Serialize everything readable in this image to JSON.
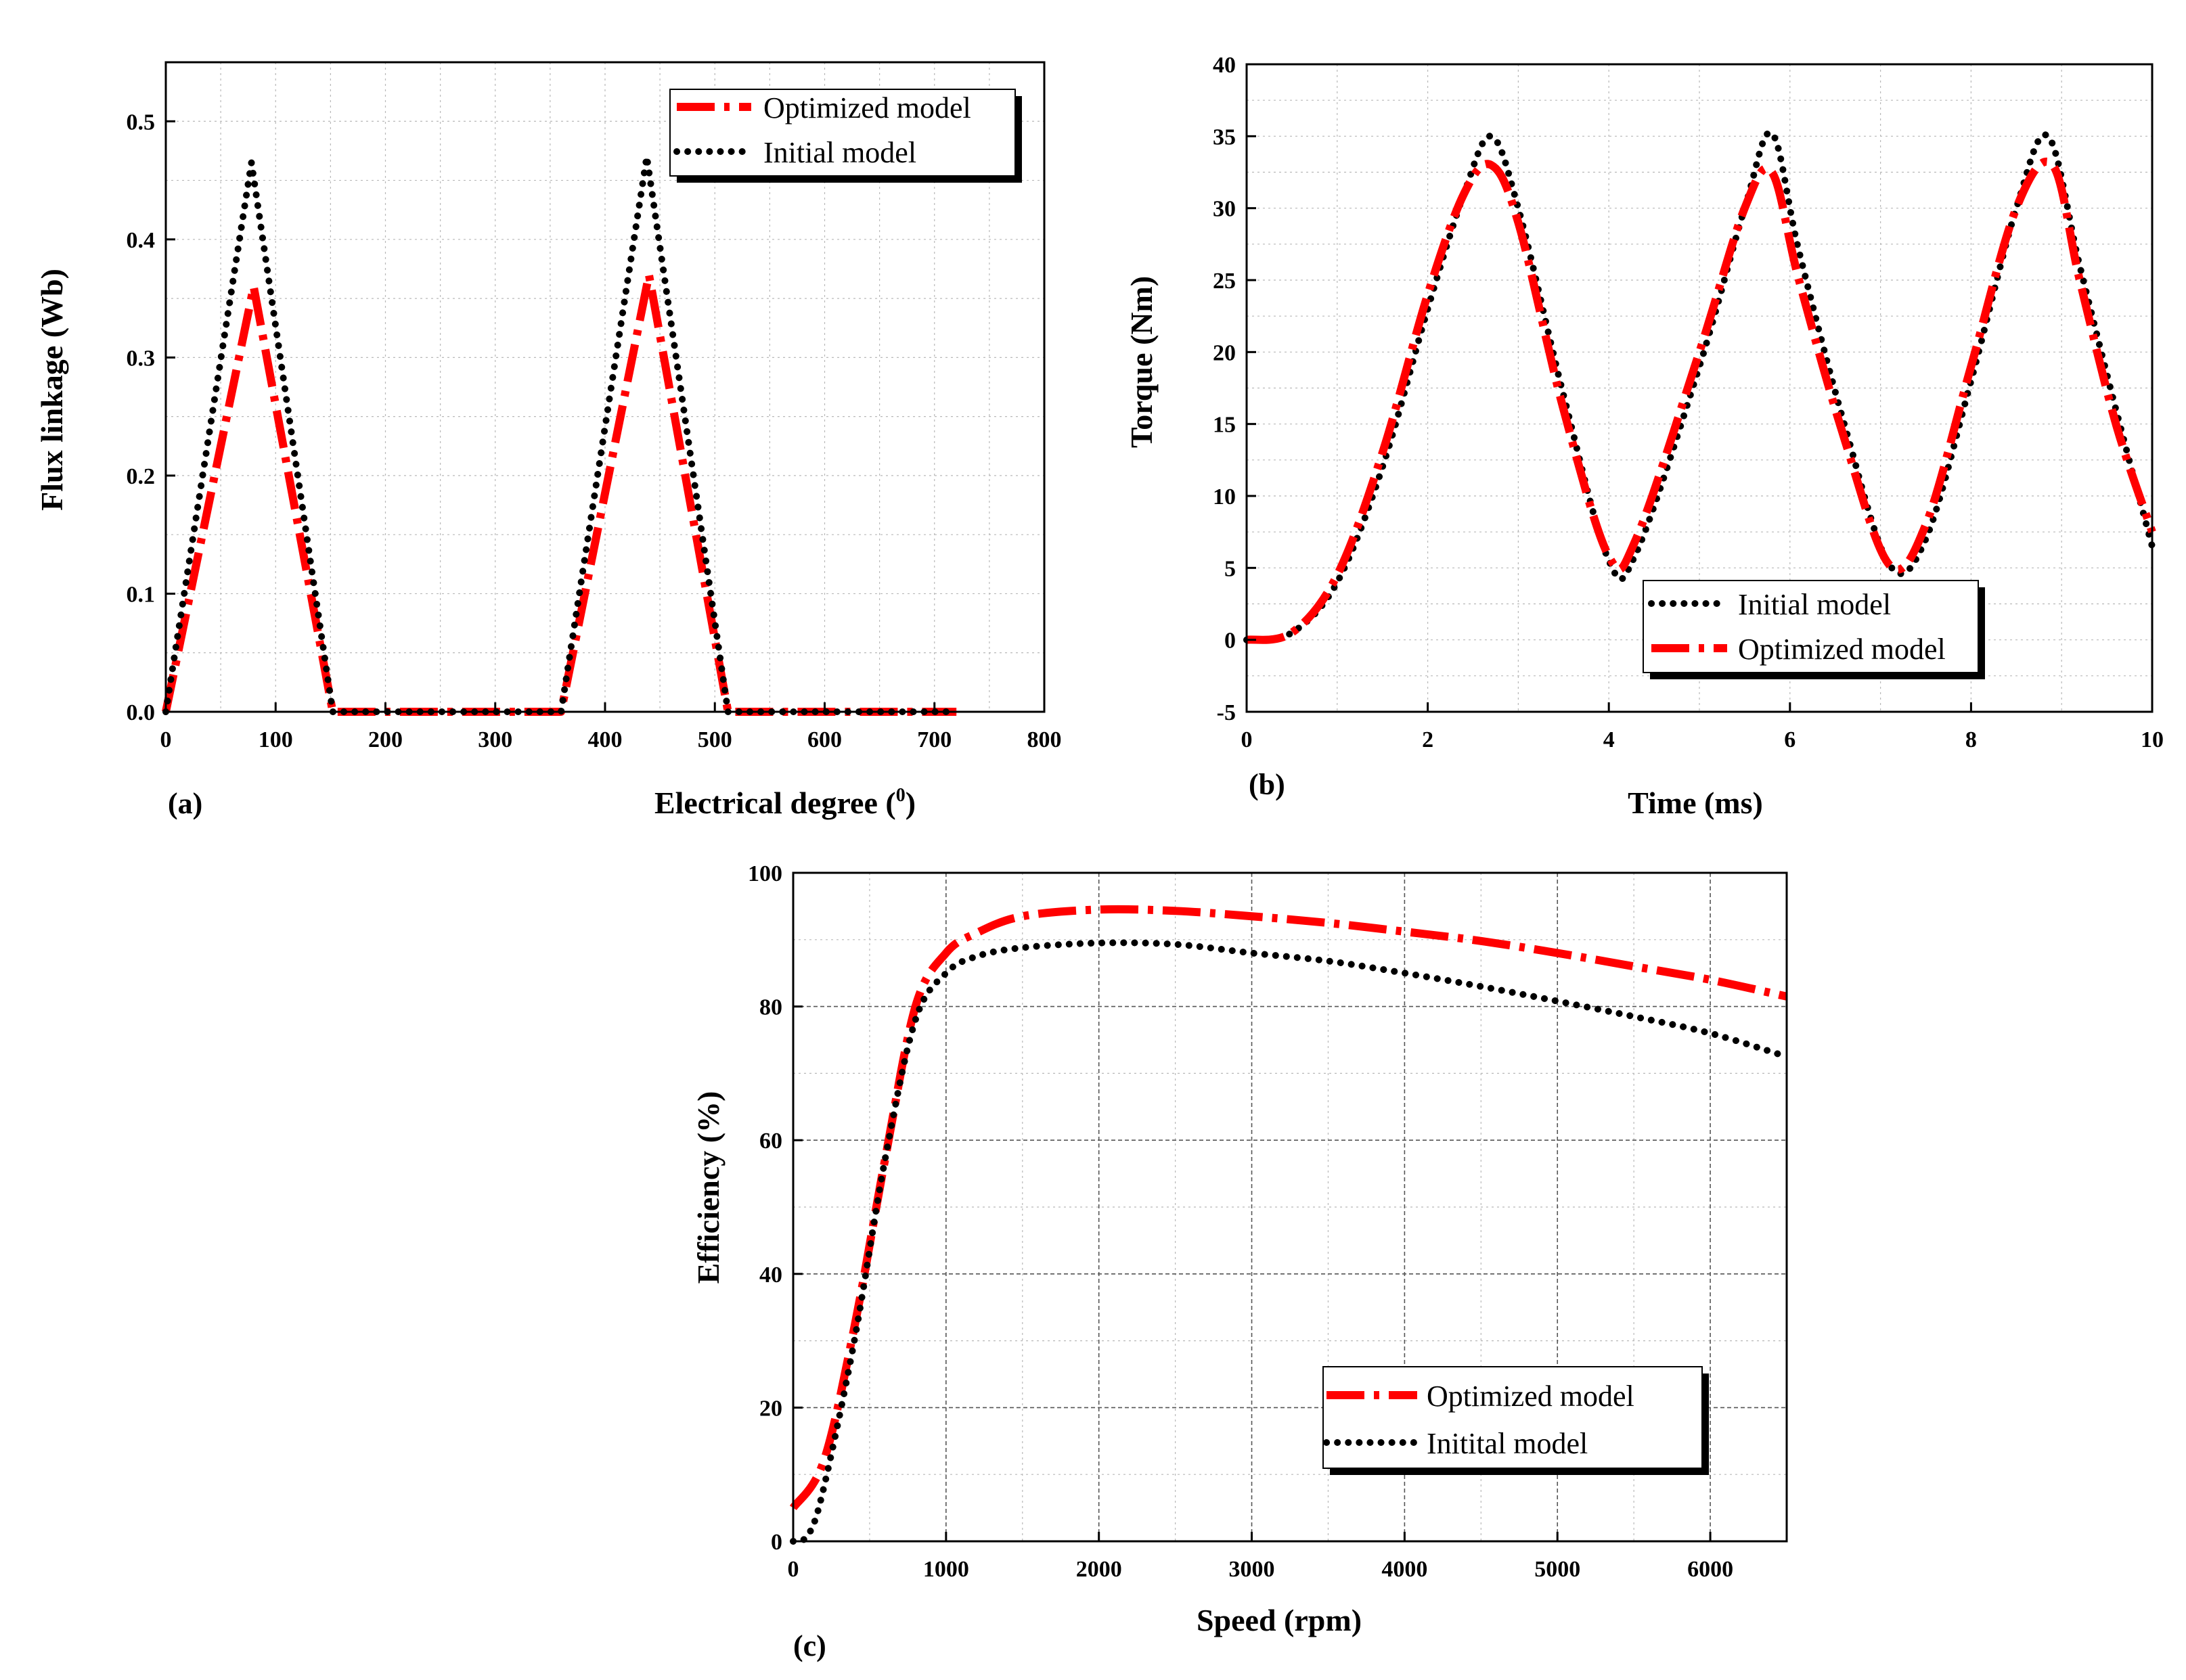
{
  "colors": {
    "optimized": "#ff0000",
    "initial": "#000000",
    "grid": "#b8b8b8",
    "axis": "#000000"
  },
  "chart_data": [
    {
      "id": "a",
      "type": "line",
      "panel_label": "(a)",
      "xlabel": "Electrical degree (",
      "xlabel_sup": "0",
      "xlabel_end": ")",
      "ylabel": "Flux linkage (Wb)",
      "xlim": [
        0,
        800
      ],
      "ylim": [
        0,
        0.55
      ],
      "xticks": [
        "0",
        "100",
        "200",
        "300",
        "400",
        "500",
        "600",
        "700",
        "800"
      ],
      "xtick_values": [
        0,
        100,
        200,
        300,
        400,
        500,
        600,
        700,
        800
      ],
      "yticks": [
        "0.0",
        "0.1",
        "0.2",
        "0.3",
        "0.4",
        "0.5"
      ],
      "ytick_values": [
        0,
        0.1,
        0.2,
        0.3,
        0.4,
        0.5
      ],
      "legend_position": "top-right",
      "legend": [
        {
          "name": "Optimized model",
          "style": "optimized"
        },
        {
          "name": "Initial model",
          "style": "initial"
        }
      ],
      "series": [
        {
          "name": "Optimized model",
          "style": "optimized",
          "x": [
            0,
            80,
            152,
            160,
            360,
            440,
            512,
            520,
            720
          ],
          "y": [
            0,
            0.36,
            0,
            0,
            0,
            0.37,
            0,
            0,
            0
          ]
        },
        {
          "name": "Initial model",
          "style": "initial",
          "x": [
            0,
            78,
            152,
            160,
            360,
            438,
            512,
            520,
            720
          ],
          "y": [
            0,
            0.465,
            0,
            0,
            0,
            0.47,
            0,
            0,
            0
          ]
        }
      ]
    },
    {
      "id": "b",
      "type": "line",
      "panel_label": "(b)",
      "xlabel": "Time (ms)",
      "ylabel": "Torque (Nm)",
      "xlim": [
        0,
        10
      ],
      "ylim": [
        -5,
        40
      ],
      "xticks": [
        "0",
        "2",
        "4",
        "6",
        "8",
        "10"
      ],
      "xtick_values": [
        0,
        2,
        4,
        6,
        8,
        10
      ],
      "yticks": [
        "-5",
        "0",
        "5",
        "10",
        "15",
        "20",
        "25",
        "30",
        "35",
        "40"
      ],
      "ytick_values": [
        -5,
        0,
        5,
        10,
        15,
        20,
        25,
        30,
        35,
        40
      ],
      "legend_position": "bottom-right",
      "legend": [
        {
          "name": "Initial model",
          "style": "initial"
        },
        {
          "name": "Optimized model",
          "style": "optimized"
        }
      ],
      "series": [
        {
          "name": "Initial model",
          "style": "initial",
          "x": [
            0,
            0.5,
            1.0,
            1.5,
            2.0,
            2.4,
            2.7,
            3.0,
            3.5,
            4.0,
            4.3,
            5.0,
            5.5,
            5.8,
            6.1,
            6.6,
            7.1,
            7.5,
            8.0,
            8.5,
            8.85,
            9.2,
            9.6,
            10.0
          ],
          "y": [
            0,
            0.5,
            4,
            12,
            23,
            31,
            35,
            30,
            17,
            5.5,
            6,
            19,
            30,
            35.2,
            27,
            15,
            5.2,
            7,
            18,
            30,
            35,
            26,
            16,
            6.5
          ]
        },
        {
          "name": "Optimized model",
          "style": "optimized",
          "x": [
            0,
            0.5,
            1.0,
            1.5,
            2.0,
            2.4,
            2.7,
            3.0,
            3.5,
            4.0,
            4.3,
            5.0,
            5.5,
            5.8,
            6.1,
            6.6,
            7.1,
            7.5,
            8.0,
            8.5,
            8.9,
            9.2,
            9.6,
            10.0
          ],
          "y": [
            0,
            0.5,
            4.5,
            13,
            24,
            31,
            33,
            29,
            16,
            5.8,
            7,
            20,
            30,
            32.5,
            25,
            14,
            5.2,
            8,
            19,
            30,
            33,
            25,
            15,
            7.5
          ]
        }
      ]
    },
    {
      "id": "c",
      "type": "line",
      "panel_label": "(c)",
      "xlabel": "Speed (rpm)",
      "ylabel": "Efficiency (%)",
      "xlim": [
        0,
        6500
      ],
      "ylim": [
        0,
        100
      ],
      "xticks": [
        "0",
        "1000",
        "2000",
        "3000",
        "4000",
        "5000",
        "6000"
      ],
      "xtick_values": [
        0,
        1000,
        2000,
        3000,
        4000,
        5000,
        6000
      ],
      "yticks": [
        "0",
        "20",
        "40",
        "60",
        "80",
        "100"
      ],
      "ytick_values": [
        0,
        20,
        40,
        60,
        80,
        100
      ],
      "legend_position": "bottom-right",
      "legend": [
        {
          "name": "Optimized model",
          "style": "optimized"
        },
        {
          "name": "Initital model",
          "style": "initial"
        }
      ],
      "series": [
        {
          "name": "Optimized model",
          "style": "optimized",
          "x": [
            0,
            200,
            400,
            600,
            800,
            1000,
            1200,
            1500,
            2000,
            2500,
            3000,
            3500,
            4000,
            4500,
            5000,
            5500,
            6000,
            6500
          ],
          "y": [
            5,
            12,
            32,
            57,
            80,
            88,
            91,
            93.5,
            94.5,
            94.3,
            93.5,
            92.5,
            91.2,
            89.8,
            88,
            86,
            84,
            81.5
          ]
        },
        {
          "name": "Initital model",
          "style": "initial",
          "x": [
            0,
            100,
            200,
            400,
            600,
            800,
            1000,
            1200,
            1500,
            2000,
            2500,
            3000,
            3500,
            4000,
            4500,
            5000,
            5500,
            6000,
            6500
          ],
          "y": [
            0,
            1,
            8,
            30,
            57,
            78,
            85,
            87.5,
            88.8,
            89.5,
            89.3,
            88,
            86.8,
            85,
            83,
            80.8,
            78.5,
            76,
            72.5
          ]
        }
      ]
    }
  ]
}
